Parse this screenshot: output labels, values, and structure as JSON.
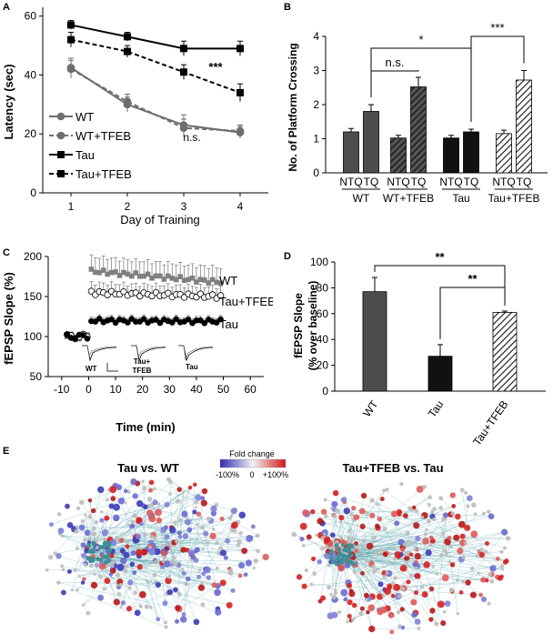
{
  "panel_labels": [
    "A",
    "B",
    "C",
    "D",
    "E"
  ],
  "chart_data": [
    {
      "panel": "A",
      "type": "line",
      "xlabel": "Day of Training",
      "ylabel": "Latency (sec)",
      "x": [
        1,
        2,
        3,
        4
      ],
      "xticks": [
        "1",
        "2",
        "3",
        "4"
      ],
      "yticks": [
        "0",
        "20",
        "40",
        "60"
      ],
      "xlim": [
        0.5,
        4.5
      ],
      "ylim": [
        0,
        63
      ],
      "legend_position": "bottom-left",
      "series": [
        {
          "name": "WT",
          "values": [
            42.5,
            30,
            23,
            20.5
          ],
          "err": [
            3.2,
            2.5,
            3.5,
            2
          ],
          "marker": "circle",
          "line": "solid",
          "color": "#6e6e6e"
        },
        {
          "name": "WT+TFEB",
          "values": [
            42,
            31,
            22,
            21
          ],
          "err": [
            3,
            2.5,
            3,
            2
          ],
          "marker": "circle",
          "line": "dashed",
          "color": "#6e6e6e"
        },
        {
          "name": "Tau",
          "values": [
            57,
            53,
            49,
            49
          ],
          "err": [
            1.5,
            1.5,
            2.5,
            2.5
          ],
          "marker": "square",
          "line": "solid",
          "color": "#000000"
        },
        {
          "name": "Tau+TFEB",
          "values": [
            52,
            48,
            41,
            34
          ],
          "err": [
            2.5,
            2,
            2.5,
            3
          ],
          "marker": "square",
          "line": "dashed",
          "color": "#000000"
        }
      ],
      "annotations": [
        {
          "text": "***",
          "x": 3.3,
          "y": 42
        },
        {
          "text": "n.s.",
          "x": 3.0,
          "y": 15
        }
      ]
    },
    {
      "panel": "B",
      "type": "bar",
      "ylabel": "No. of Platform Crossing",
      "ylim": [
        0,
        4
      ],
      "yticks": [
        "0",
        "1",
        "2",
        "3",
        "4"
      ],
      "categories": [
        "NTQ",
        "TQ",
        "NTQ",
        "TQ",
        "NTQ",
        "TQ",
        "NTQ",
        "TQ"
      ],
      "groups": [
        "WT",
        "WT+TFEB",
        "Tau",
        "Tau+TFEB"
      ],
      "values": [
        1.2,
        1.8,
        1.02,
        2.52,
        1.02,
        1.2,
        1.15,
        2.72
      ],
      "err": [
        0.1,
        0.2,
        0.08,
        0.28,
        0.08,
        0.08,
        0.1,
        0.28
      ],
      "fills": [
        "#4d4d4d",
        "#4d4d4d",
        "hatch-dark",
        "hatch-dark",
        "#111111",
        "#111111",
        "hatch-light",
        "hatch-light"
      ],
      "significance": [
        {
          "text": "n.s.",
          "from": 1,
          "to": 3
        },
        {
          "text": "*",
          "from": 1,
          "to": 5
        },
        {
          "text": "***",
          "from": 5,
          "to": 7
        }
      ]
    },
    {
      "panel": "C",
      "type": "scatter",
      "xlabel": "Time (min)",
      "ylabel": "fEPSP Slope (%)",
      "xlim": [
        -15,
        65
      ],
      "ylim": [
        50,
        200
      ],
      "xticks": [
        "-10",
        "0",
        "10",
        "20",
        "30",
        "40",
        "50",
        "60"
      ],
      "yticks": [
        "50",
        "100",
        "150",
        "200"
      ],
      "series": [
        {
          "name": "WT",
          "baseline": 100,
          "start": 182,
          "end": 168,
          "err": 18,
          "marker": "filled-square",
          "color": "#808080"
        },
        {
          "name": "Tau+TFEB",
          "baseline": 100,
          "start": 155,
          "end": 150,
          "err": 12,
          "marker": "open-circle",
          "color": "#000000"
        },
        {
          "name": "Tau",
          "baseline": 100,
          "start": 120,
          "end": 119,
          "err": 5,
          "marker": "filled-circle",
          "color": "#000000"
        }
      ],
      "inset_labels": [
        "WT",
        "Tau+\nTFEB",
        "Tau"
      ]
    },
    {
      "panel": "D",
      "type": "bar",
      "ylabel": "fEPSP Slope\n(% over baseline)",
      "ylim": [
        0,
        100
      ],
      "yticks": [
        "0",
        "20",
        "40",
        "60",
        "80",
        "100"
      ],
      "categories": [
        "WT",
        "Tau",
        "Tau+TFEB"
      ],
      "values": [
        77,
        27,
        61
      ],
      "err": [
        11,
        9,
        1
      ],
      "fills": [
        "#4d4d4d",
        "#111111",
        "hatch-light"
      ],
      "significance": [
        {
          "text": "**",
          "from": 0,
          "to": 2
        },
        {
          "text": "**",
          "from": 1,
          "to": 2
        }
      ]
    }
  ],
  "network": {
    "colorbar_title": "Fold change",
    "colorbar_ticks": [
      "-100%",
      "0",
      "+100%"
    ],
    "left_title": "Tau vs. WT",
    "right_title": "Tau+TFEB vs. Tau"
  }
}
